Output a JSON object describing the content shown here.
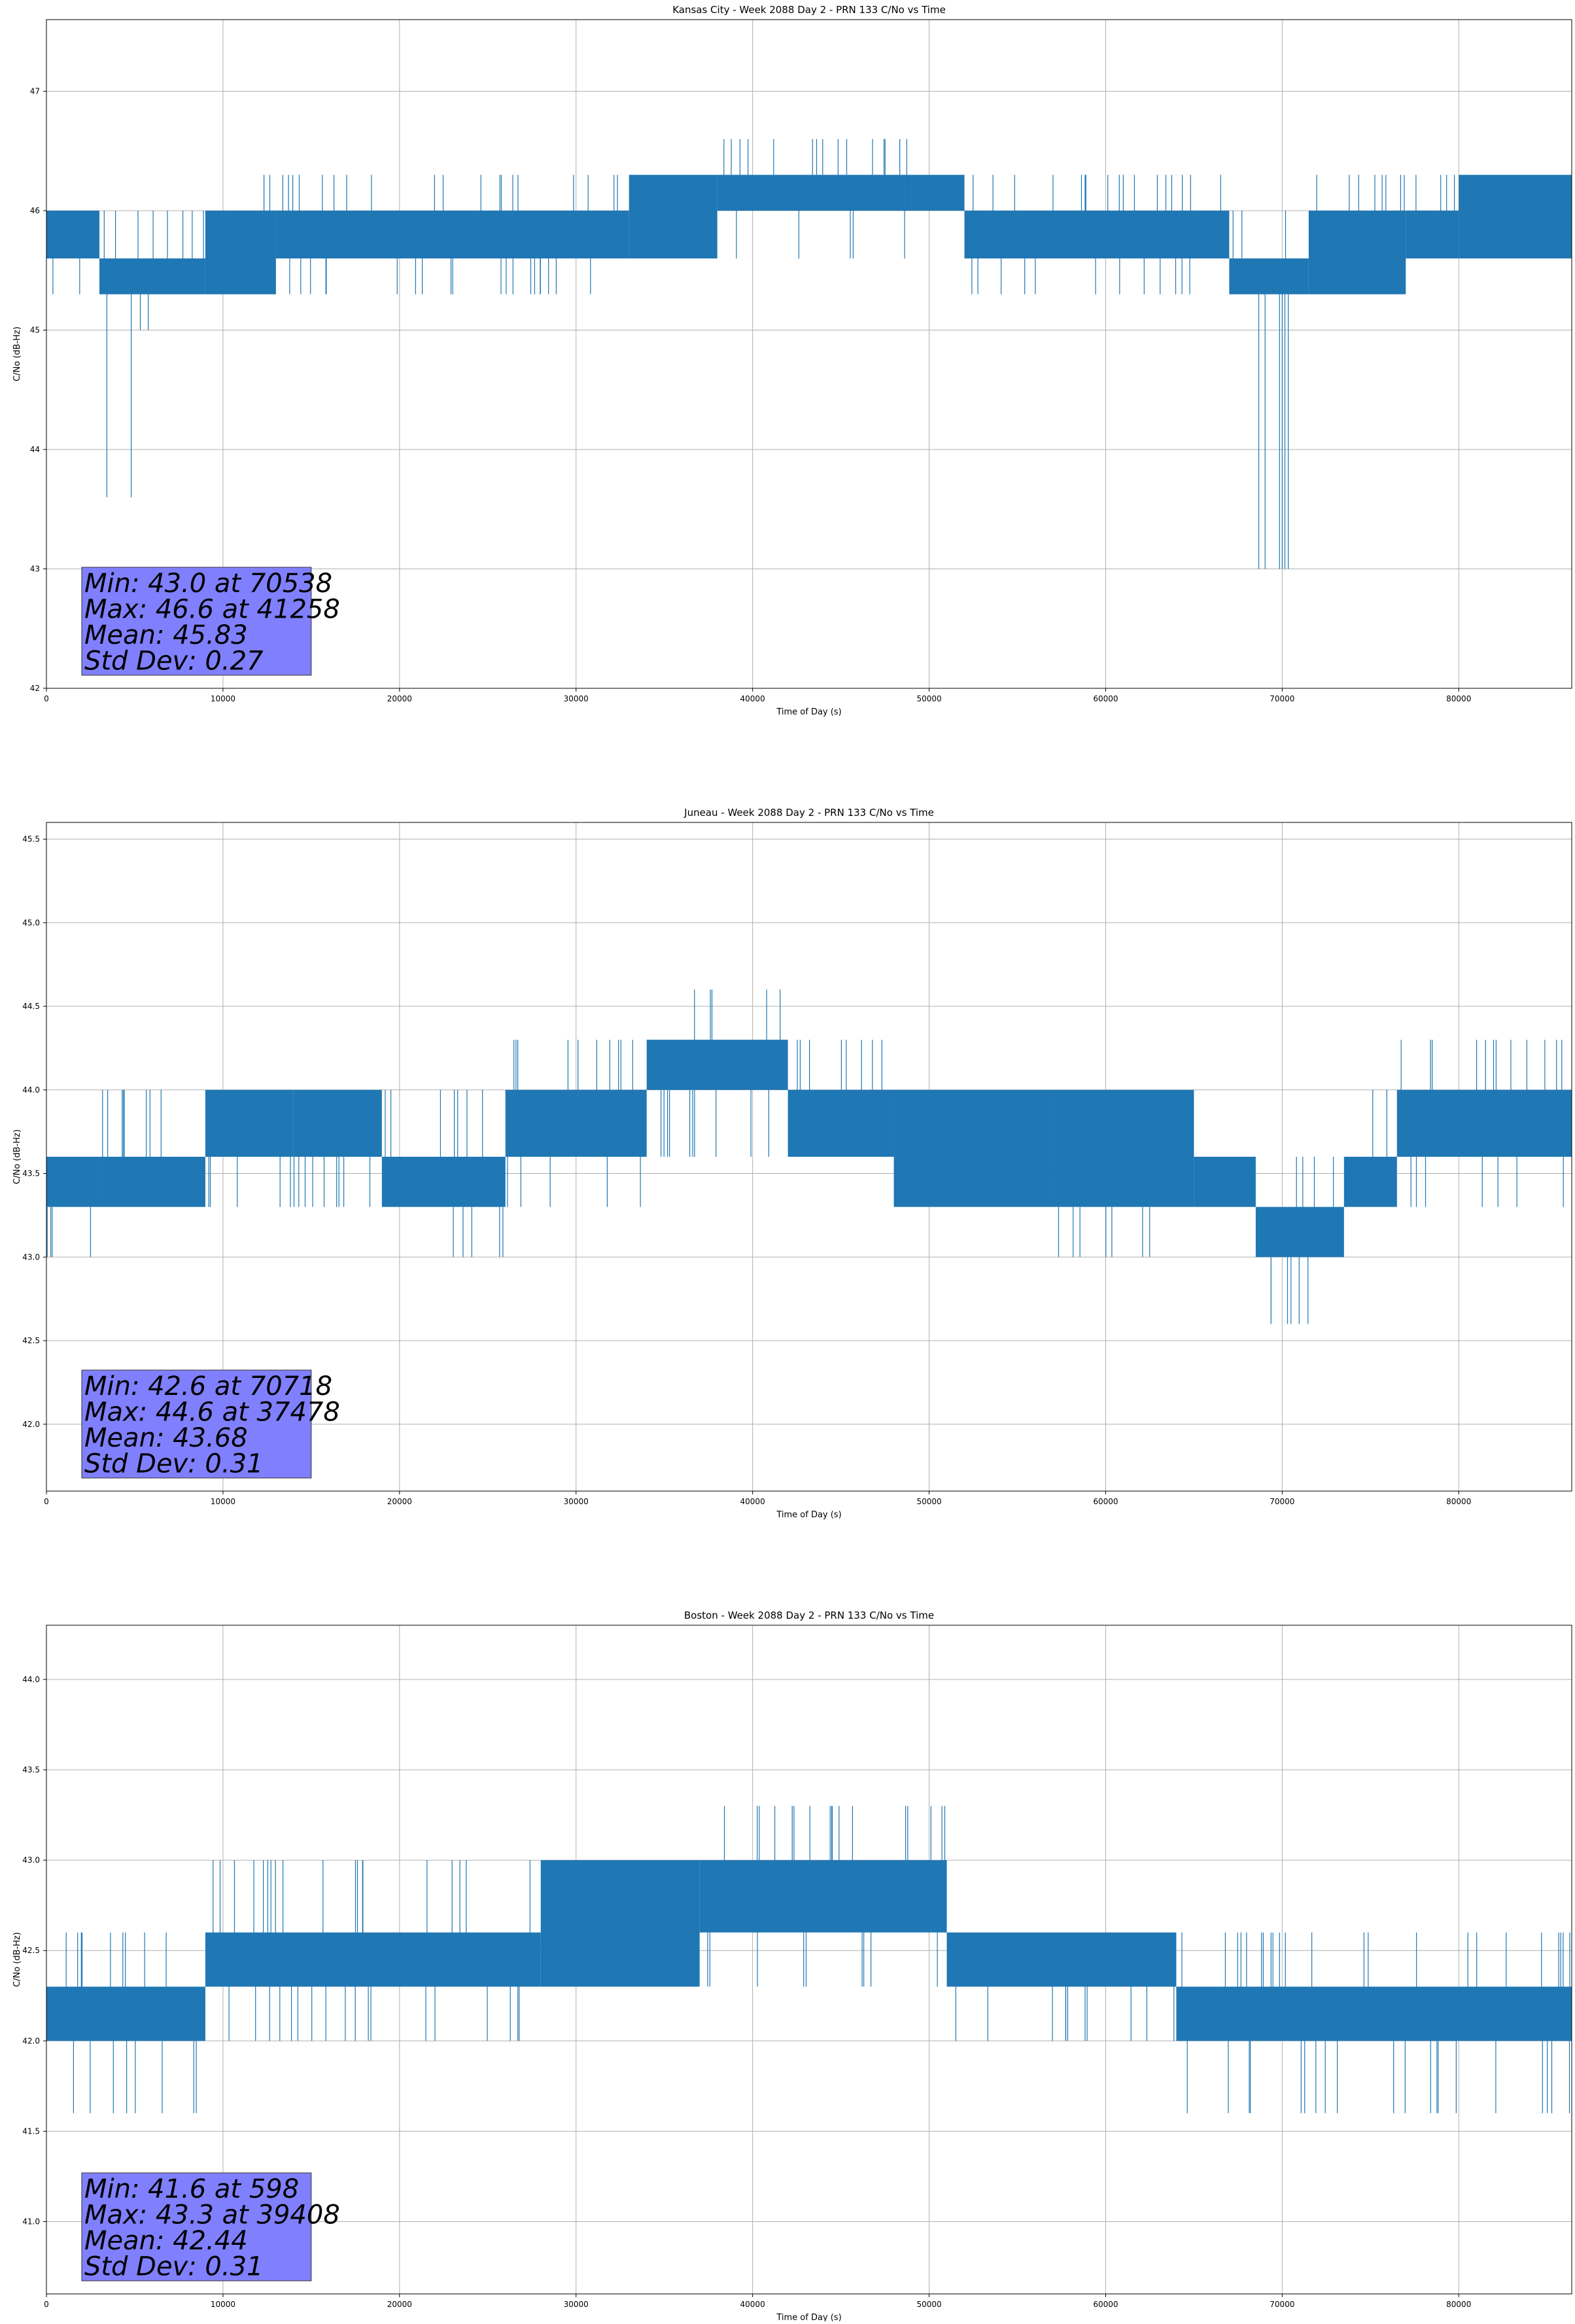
{
  "chart_data": [
    {
      "type": "line",
      "title": "Kansas City - Week 2088 Day 2 - PRN 133 C/No vs Time",
      "xlabel": "Time of Day (s)",
      "ylabel": "C/No (dB-Hz)",
      "xlim": [
        0,
        86400
      ],
      "ylim": [
        42,
        47.6
      ],
      "x_ticks": [
        0,
        10000,
        20000,
        30000,
        40000,
        50000,
        60000,
        70000,
        80000
      ],
      "y_ticks": [
        42,
        43,
        44,
        45,
        46,
        47
      ],
      "y_tick_labels": [
        "42",
        "43",
        "44",
        "45",
        "46",
        "47"
      ],
      "grid": true,
      "series_color": "#1f77b4",
      "quantization_step": 0.3,
      "bands": [
        {
          "x": [
            0,
            3000
          ],
          "lo": 45.6,
          "hi": 46.0,
          "spikes_up": [
            46.0
          ],
          "spikes_down": [
            45.3
          ]
        },
        {
          "x": [
            3000,
            9000
          ],
          "lo": 45.3,
          "hi": 45.6,
          "spikes_up": [
            46.0
          ],
          "spikes_down": [
            45.0,
            43.6
          ]
        },
        {
          "x": [
            9000,
            13000
          ],
          "lo": 45.3,
          "hi": 46.0,
          "spikes_up": [
            46.3
          ],
          "spikes_down": [
            45.3
          ]
        },
        {
          "x": [
            13000,
            33000
          ],
          "lo": 45.6,
          "hi": 46.0,
          "spikes_up": [
            46.3
          ],
          "spikes_down": [
            45.3
          ]
        },
        {
          "x": [
            33000,
            38000
          ],
          "lo": 45.6,
          "hi": 46.3,
          "spikes_up": [
            46.3
          ],
          "spikes_down": [
            45.6
          ]
        },
        {
          "x": [
            38000,
            49000
          ],
          "lo": 46.0,
          "hi": 46.3,
          "spikes_up": [
            46.6
          ],
          "spikes_down": [
            45.6
          ]
        },
        {
          "x": [
            49000,
            52000
          ],
          "lo": 46.0,
          "hi": 46.3,
          "spikes_up": [
            46.3
          ],
          "spikes_down": [
            45.6,
            45.3
          ]
        },
        {
          "x": [
            52000,
            67000
          ],
          "lo": 45.6,
          "hi": 46.0,
          "spikes_up": [
            46.3
          ],
          "spikes_down": [
            45.3
          ]
        },
        {
          "x": [
            67000,
            71500
          ],
          "lo": 45.3,
          "hi": 45.6,
          "spikes_up": [
            46.0
          ],
          "spikes_down": [
            43.0
          ]
        },
        {
          "x": [
            71500,
            77000
          ],
          "lo": 45.3,
          "hi": 46.0,
          "spikes_up": [
            46.3
          ],
          "spikes_down": [
            45.3
          ]
        },
        {
          "x": [
            77000,
            80000
          ],
          "lo": 45.6,
          "hi": 46.0,
          "spikes_up": [
            46.3
          ],
          "spikes_down": [
            45.6
          ]
        },
        {
          "x": [
            80000,
            86400
          ],
          "lo": 45.6,
          "hi": 46.3,
          "spikes_up": [
            46.3
          ],
          "spikes_down": [
            45.6
          ]
        }
      ],
      "stats": {
        "min": "Min: 43.0 at 70538",
        "max": "Max: 46.6 at 41258",
        "mean": "Mean: 45.83",
        "std": "Std Dev: 0.27",
        "box_color": "#8080ff"
      }
    },
    {
      "type": "line",
      "title": "Juneau - Week 2088 Day 2 - PRN 133 C/No vs Time",
      "xlabel": "Time of Day (s)",
      "ylabel": "C/No (dB-Hz)",
      "xlim": [
        0,
        86400
      ],
      "ylim": [
        41.6,
        45.6
      ],
      "x_ticks": [
        0,
        10000,
        20000,
        30000,
        40000,
        50000,
        60000,
        70000,
        80000
      ],
      "y_ticks": [
        42.0,
        42.5,
        43.0,
        43.5,
        44.0,
        44.5,
        45.0,
        45.5
      ],
      "y_tick_labels": [
        "42.0",
        "42.5",
        "43.0",
        "43.5",
        "44.0",
        "44.5",
        "45.0",
        "45.5"
      ],
      "grid": true,
      "series_color": "#1f77b4",
      "quantization_step": 0.3,
      "bands": [
        {
          "x": [
            0,
            3000
          ],
          "lo": 43.3,
          "hi": 43.6,
          "spikes_up": [
            43.6
          ],
          "spikes_down": [
            43.0
          ]
        },
        {
          "x": [
            3000,
            9000
          ],
          "lo": 43.3,
          "hi": 43.6,
          "spikes_up": [
            44.0
          ],
          "spikes_down": [
            43.3
          ]
        },
        {
          "x": [
            9000,
            14000
          ],
          "lo": 43.6,
          "hi": 44.0,
          "spikes_up": [
            44.0
          ],
          "spikes_down": [
            43.3
          ]
        },
        {
          "x": [
            14000,
            19000
          ],
          "lo": 43.6,
          "hi": 44.0,
          "spikes_up": [
            44.0
          ],
          "spikes_down": [
            43.3
          ]
        },
        {
          "x": [
            19000,
            26000
          ],
          "lo": 43.3,
          "hi": 43.6,
          "spikes_up": [
            44.0
          ],
          "spikes_down": [
            43.0
          ]
        },
        {
          "x": [
            26000,
            34000
          ],
          "lo": 43.6,
          "hi": 44.0,
          "spikes_up": [
            44.3
          ],
          "spikes_down": [
            43.3
          ]
        },
        {
          "x": [
            34000,
            42000
          ],
          "lo": 44.0,
          "hi": 44.3,
          "spikes_up": [
            44.6
          ],
          "spikes_down": [
            43.6
          ]
        },
        {
          "x": [
            42000,
            48000
          ],
          "lo": 43.6,
          "hi": 44.0,
          "spikes_up": [
            44.3
          ],
          "spikes_down": [
            43.6
          ]
        },
        {
          "x": [
            48000,
            57000
          ],
          "lo": 43.3,
          "hi": 44.0,
          "spikes_up": [
            44.0
          ],
          "spikes_down": [
            43.3
          ]
        },
        {
          "x": [
            57000,
            65000
          ],
          "lo": 43.3,
          "hi": 44.0,
          "spikes_up": [
            44.0
          ],
          "spikes_down": [
            43.0
          ]
        },
        {
          "x": [
            65000,
            68500
          ],
          "lo": 43.3,
          "hi": 43.6,
          "spikes_up": [
            43.6
          ],
          "spikes_down": [
            43.3
          ]
        },
        {
          "x": [
            68500,
            73500
          ],
          "lo": 43.0,
          "hi": 43.3,
          "spikes_up": [
            43.6
          ],
          "spikes_down": [
            42.6
          ]
        },
        {
          "x": [
            73500,
            76500
          ],
          "lo": 43.3,
          "hi": 43.6,
          "spikes_up": [
            44.0
          ],
          "spikes_down": [
            43.3
          ]
        },
        {
          "x": [
            76500,
            86400
          ],
          "lo": 43.6,
          "hi": 44.0,
          "spikes_up": [
            44.3
          ],
          "spikes_down": [
            43.3
          ]
        }
      ],
      "stats": {
        "min": "Min: 42.6 at 70718",
        "max": "Max: 44.6 at 37478",
        "mean": "Mean: 43.68",
        "std": "Std Dev: 0.31",
        "box_color": "#8080ff"
      }
    },
    {
      "type": "line",
      "title": "Boston - Week 2088 Day 2 - PRN 133 C/No vs Time",
      "xlabel": "Time of Day (s)",
      "ylabel": "C/No (dB-Hz)",
      "xlim": [
        0,
        86400
      ],
      "ylim": [
        40.6,
        44.3
      ],
      "x_ticks": [
        0,
        10000,
        20000,
        30000,
        40000,
        50000,
        60000,
        70000,
        80000
      ],
      "y_ticks": [
        41.0,
        41.5,
        42.0,
        42.5,
        43.0,
        43.5,
        44.0
      ],
      "y_tick_labels": [
        "41.0",
        "41.5",
        "42.0",
        "42.5",
        "43.0",
        "43.5",
        "44.0"
      ],
      "grid": true,
      "series_color": "#1f77b4",
      "quantization_step": 0.3,
      "bands": [
        {
          "x": [
            0,
            9000
          ],
          "lo": 42.0,
          "hi": 42.3,
          "spikes_up": [
            42.6
          ],
          "spikes_down": [
            41.6
          ]
        },
        {
          "x": [
            9000,
            28000
          ],
          "lo": 42.3,
          "hi": 42.6,
          "spikes_up": [
            43.0
          ],
          "spikes_down": [
            42.0
          ]
        },
        {
          "x": [
            28000,
            37000
          ],
          "lo": 42.3,
          "hi": 43.0,
          "spikes_up": [
            43.0
          ],
          "spikes_down": [
            42.3
          ]
        },
        {
          "x": [
            37000,
            51000
          ],
          "lo": 42.6,
          "hi": 43.0,
          "spikes_up": [
            43.3
          ],
          "spikes_down": [
            42.3
          ]
        },
        {
          "x": [
            51000,
            64000
          ],
          "lo": 42.3,
          "hi": 42.6,
          "spikes_up": [
            42.6
          ],
          "spikes_down": [
            42.0
          ]
        },
        {
          "x": [
            64000,
            86400
          ],
          "lo": 42.0,
          "hi": 42.3,
          "spikes_up": [
            42.6
          ],
          "spikes_down": [
            41.6
          ]
        }
      ],
      "stats": {
        "min": "Min: 41.6 at 598",
        "max": "Max: 43.3 at 39408",
        "mean": "Mean: 42.44",
        "std": "Std Dev: 0.31",
        "box_color": "#8080ff"
      }
    }
  ]
}
